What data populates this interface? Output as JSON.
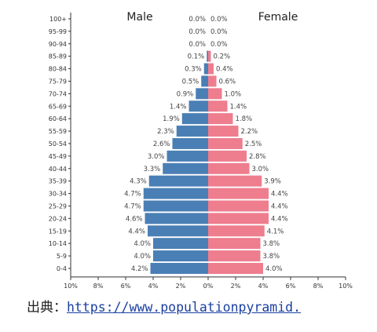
{
  "chart_data": {
    "type": "bar",
    "orientation": "horizontal",
    "subtype": "population-pyramid",
    "categories": [
      "100+",
      "95-99",
      "90-94",
      "85-89",
      "80-84",
      "75-79",
      "70-74",
      "65-69",
      "60-64",
      "55-59",
      "50-54",
      "45-49",
      "40-44",
      "35-39",
      "30-34",
      "25-29",
      "20-24",
      "15-19",
      "10-14",
      "5-9",
      "0-4"
    ],
    "series": [
      {
        "name": "Male",
        "color": "#4a7fb5",
        "values": [
          0.0,
          0.0,
          0.0,
          0.1,
          0.3,
          0.5,
          0.9,
          1.4,
          1.9,
          2.3,
          2.6,
          3.0,
          3.3,
          4.3,
          4.7,
          4.7,
          4.6,
          4.4,
          4.0,
          4.0,
          4.2
        ],
        "labels": [
          "0.0%",
          "0.0%",
          "0.0%",
          "0.1%",
          "0.3%",
          "0.5%",
          "0.9%",
          "1.4%",
          "1.9%",
          "2.3%",
          "2.6%",
          "3.0%",
          "3.3%",
          "4.3%",
          "4.7%",
          "4.7%",
          "4.6%",
          "4.4%",
          "4.0%",
          "4.0%",
          "4.2%"
        ]
      },
      {
        "name": "Female",
        "color": "#ee7d8e",
        "values": [
          0.0,
          0.0,
          0.0,
          0.2,
          0.4,
          0.6,
          1.0,
          1.4,
          1.8,
          2.2,
          2.5,
          2.8,
          3.0,
          3.9,
          4.4,
          4.4,
          4.4,
          4.1,
          3.8,
          3.8,
          4.0
        ],
        "labels": [
          "0.0%",
          "0.0%",
          "0.0%",
          "0.2%",
          "0.4%",
          "0.6%",
          "1.0%",
          "1.4%",
          "1.8%",
          "2.2%",
          "2.5%",
          "2.8%",
          "3.0%",
          "3.9%",
          "4.4%",
          "4.4%",
          "4.4%",
          "4.1%",
          "3.8%",
          "3.8%",
          "4.0%"
        ]
      }
    ],
    "x_ticks": [
      "10%",
      "8%",
      "6%",
      "4%",
      "2%",
      "0%",
      "2%",
      "4%",
      "6%",
      "8%",
      "10%"
    ],
    "xlim": [
      -10,
      10
    ],
    "grid": false,
    "legend": "top (series names above each half)"
  },
  "source": {
    "label": "出典：",
    "url_text": "https://www.populationpyramid."
  }
}
